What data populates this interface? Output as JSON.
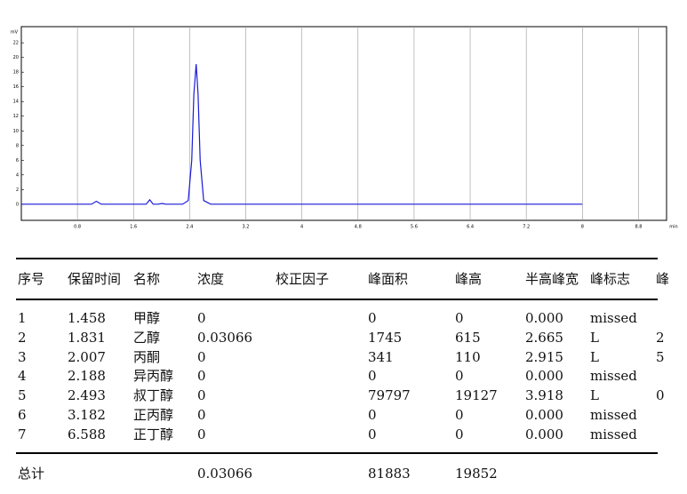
{
  "chart_data": {
    "type": "line",
    "y_label": "mV",
    "x_label": "min",
    "x": [
      0,
      1.0,
      1.07,
      1.14,
      1.4,
      1.458,
      1.5,
      1.78,
      1.831,
      1.88,
      1.95,
      2.007,
      2.06,
      2.3,
      2.38,
      2.43,
      2.46,
      2.493,
      2.52,
      2.55,
      2.6,
      2.7,
      8.0
    ],
    "series": [
      {
        "color": "#1a1ad6",
        "values": [
          0,
          0,
          0.4,
          0,
          0,
          0,
          0,
          0,
          0.6,
          0,
          0,
          0.1,
          0,
          0,
          0.5,
          6,
          15,
          19.1,
          15,
          6,
          0.5,
          0,
          0
        ]
      }
    ],
    "xlim": [
      0,
      9.2
    ],
    "xticks": [
      0.8,
      1.6,
      2.4,
      3.2,
      4,
      4.8,
      5.6,
      6.4,
      7.2,
      8,
      8.8
    ],
    "ylim": [
      -2.2,
      24.2
    ],
    "yticks": [
      0,
      2,
      4,
      6,
      8,
      10,
      12,
      14,
      16,
      18,
      20,
      22
    ],
    "grid": true
  },
  "table": {
    "header": [
      "序号",
      "保留时间",
      "名称",
      "浓度",
      "校正因子",
      "峰面积",
      "峰高",
      "半高峰宽",
      "峰标志",
      "峰"
    ],
    "rows": [
      [
        "1",
        "1.458",
        "甲醇",
        "0",
        "",
        "0",
        "0",
        "0.000",
        "missed",
        ""
      ],
      [
        "2",
        "1.831",
        "乙醇",
        "0.03066",
        "",
        "1745",
        "615",
        "2.665",
        "L",
        "2"
      ],
      [
        "3",
        "2.007",
        "丙酮",
        "0",
        "",
        "341",
        "110",
        "2.915",
        "L",
        "5"
      ],
      [
        "4",
        "2.188",
        "异丙醇",
        "0",
        "",
        "0",
        "0",
        "0.000",
        "missed",
        ""
      ],
      [
        "5",
        "2.493",
        "叔丁醇",
        "0",
        "",
        "79797",
        "19127",
        "3.918",
        "L",
        "0"
      ],
      [
        "6",
        "3.182",
        "正丙醇",
        "0",
        "",
        "0",
        "0",
        "0.000",
        "missed",
        ""
      ],
      [
        "7",
        "6.588",
        "正丁醇",
        "0",
        "",
        "0",
        "0",
        "0.000",
        "missed",
        ""
      ]
    ],
    "total": {
      "label": "总计",
      "concentration": "0.03066",
      "area": "81883",
      "height": "19852"
    }
  }
}
